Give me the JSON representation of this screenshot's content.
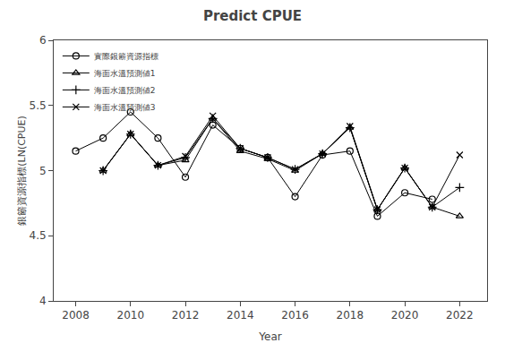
{
  "chart_data": {
    "type": "line",
    "title": "Predict CPUE",
    "xlabel": "Year",
    "ylabel": "銀簖資源指標(LN(CPUE)",
    "xlim": [
      2007.2,
      2023.0
    ],
    "xticks": [
      2008,
      2010,
      2012,
      2014,
      2016,
      2018,
      2020,
      2022
    ],
    "ylim": [
      4.0,
      6.0
    ],
    "yticks": [
      4.0,
      4.5,
      5.0,
      5.5,
      6.0
    ],
    "grid": false,
    "legend": "upper left",
    "series": [
      {
        "name": "實際銀簖資源指標",
        "color": "#000000",
        "marker": "circle",
        "x": [
          2008,
          2009,
          2010,
          2011,
          2012,
          2013,
          2014,
          2015,
          2016,
          2017,
          2018,
          2019,
          2020,
          2021
        ],
        "values": [
          5.15,
          5.25,
          5.45,
          5.25,
          4.95,
          5.35,
          5.17,
          5.1,
          4.8,
          5.12,
          5.15,
          4.65,
          4.83,
          4.78
        ]
      },
      {
        "name": "海面水溫預測値1",
        "color": "#000000",
        "marker": "triangle",
        "x": [
          2009,
          2010,
          2011,
          2012,
          2013,
          2014,
          2015,
          2016,
          2017,
          2018,
          2019,
          2020,
          2021,
          2022
        ],
        "values": [
          5.0,
          5.28,
          5.04,
          5.08,
          5.4,
          5.15,
          5.09,
          5.0,
          5.13,
          5.33,
          4.7,
          5.02,
          4.72,
          4.65
        ]
      },
      {
        "name": "海面水溫預測値2",
        "color": "#000000",
        "marker": "plus",
        "x": [
          2009,
          2010,
          2011,
          2012,
          2013,
          2014,
          2015,
          2016,
          2017,
          2018,
          2019,
          2020,
          2021,
          2022
        ],
        "values": [
          5.0,
          5.28,
          5.04,
          5.1,
          5.4,
          5.17,
          5.1,
          5.01,
          5.13,
          5.33,
          4.7,
          5.02,
          4.72,
          4.87
        ]
      },
      {
        "name": "海面水溫預測値3",
        "color": "#000000",
        "marker": "x",
        "x": [
          2009,
          2010,
          2011,
          2012,
          2013,
          2014,
          2015,
          2016,
          2017,
          2018,
          2019,
          2020,
          2021,
          2022
        ],
        "values": [
          5.0,
          5.28,
          5.04,
          5.11,
          5.42,
          5.17,
          5.1,
          5.01,
          5.13,
          5.34,
          4.7,
          5.02,
          4.72,
          5.12
        ]
      }
    ]
  }
}
